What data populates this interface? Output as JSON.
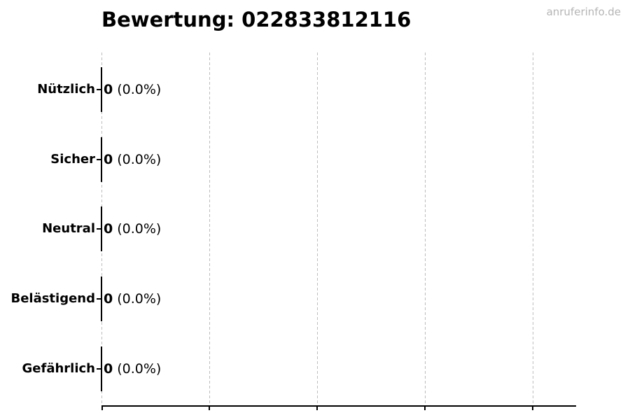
{
  "watermark": "anruferinfo.de",
  "chart_data": {
    "type": "bar",
    "orientation": "horizontal",
    "title": "Bewertung: 022833812116",
    "categories": [
      "Nützlich",
      "Sicher",
      "Neutral",
      "Belästigend",
      "Gefährlich"
    ],
    "values": [
      0,
      0,
      0,
      0,
      0
    ],
    "counts": [
      "0",
      "0",
      "0",
      "0",
      "0"
    ],
    "percents": [
      "(0.0%)",
      "(0.0%)",
      "(0.0%)",
      "(0.0%)",
      "(0.0%)"
    ],
    "xlabel": "",
    "ylabel": "",
    "x_tick_count": 5,
    "x_tick_labels": [],
    "grid": true,
    "grid_style": "dashed",
    "legend": false,
    "colors": {
      "text": "#000000",
      "bar_edge": "#000000",
      "grid": "#bdbdbd",
      "axis": "#000000",
      "watermark": "#b5b5b5",
      "background": "#ffffff"
    }
  }
}
